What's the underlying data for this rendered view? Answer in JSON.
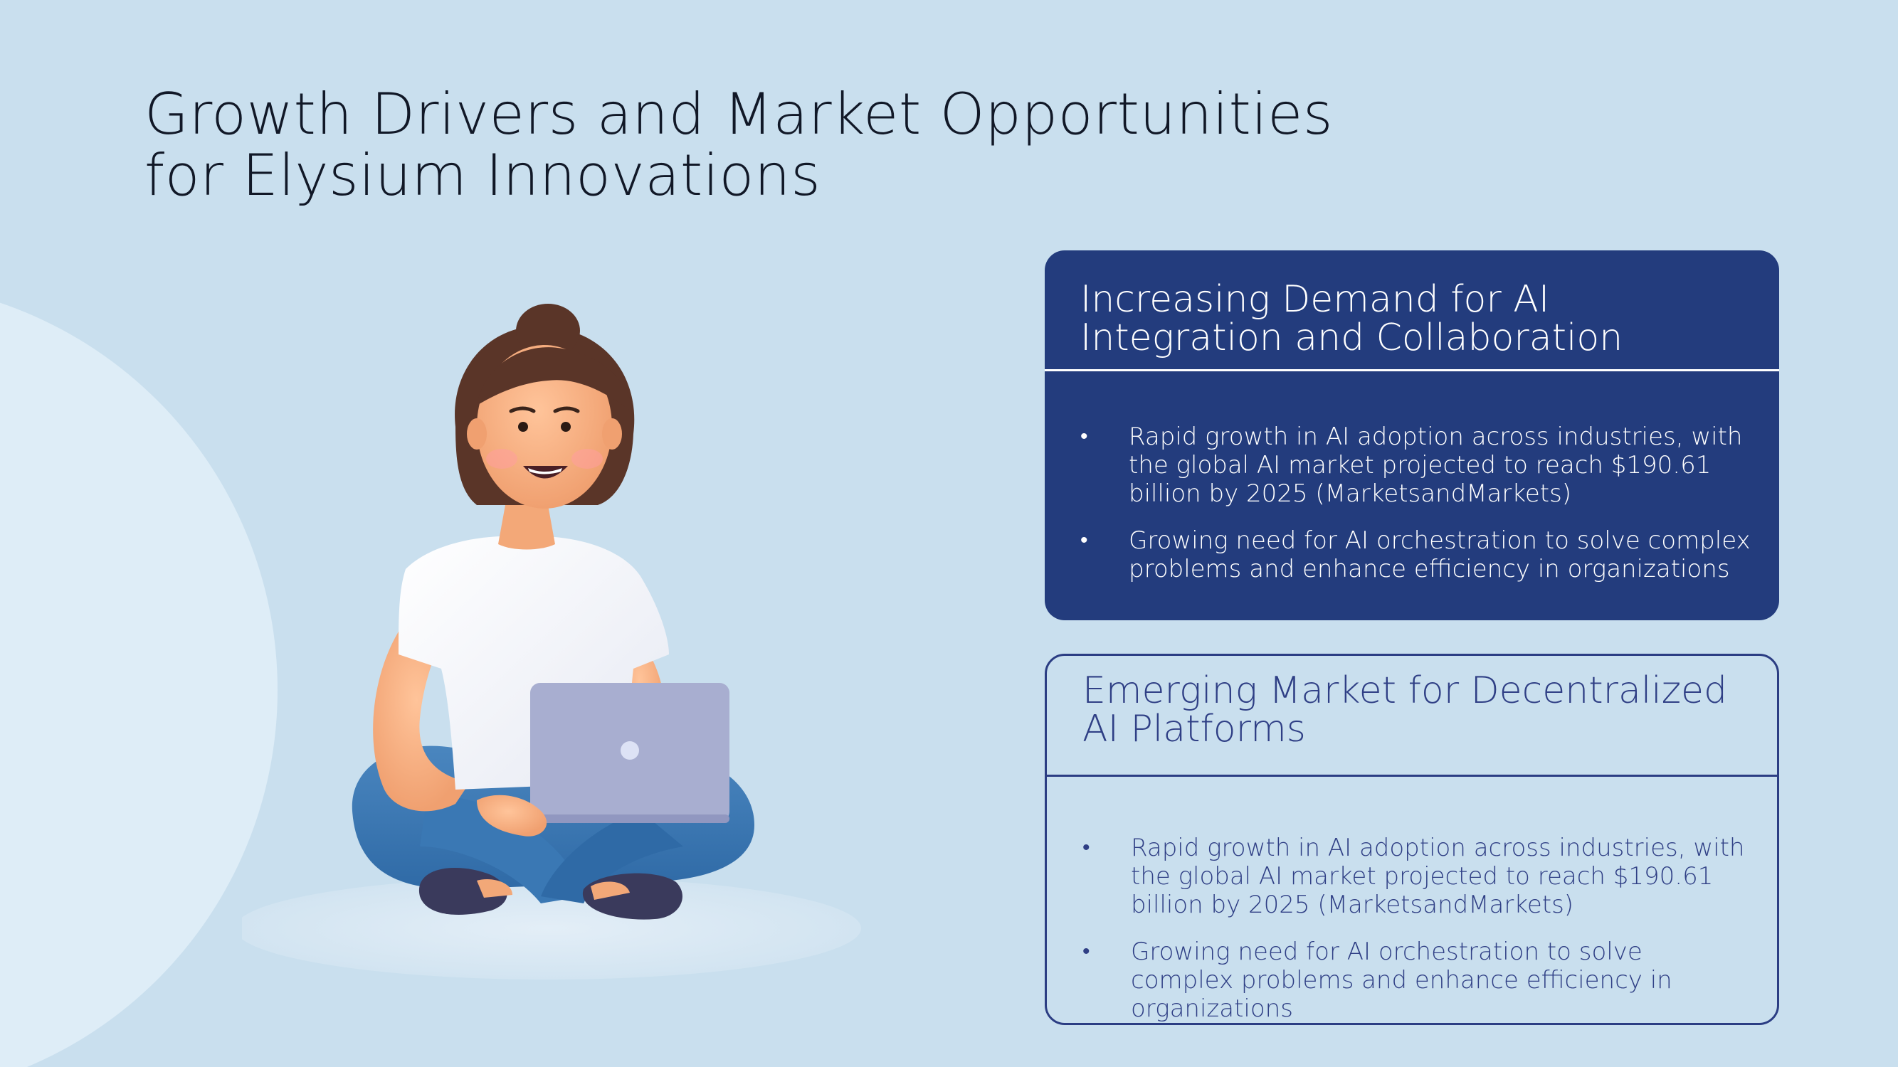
{
  "slide": {
    "title": "Growth Drivers and Market Opportunities for Elysium Innovations"
  },
  "cards": [
    {
      "heading": "Increasing Demand for AI Integration and Collaboration",
      "bullets": [
        "Rapid growth in AI adoption across industries, with the global AI market projected to reach $190.61 billion by 2025 (MarketsandMarkets)",
        "Growing need for AI orchestration to solve complex problems and enhance efficiency in organizations"
      ]
    },
    {
      "heading": "Emerging Market for Decentralized AI Platforms",
      "bullets": [
        "Rapid growth in AI adoption across industries, with the global AI market projected to reach $190.61 billion by 2025 (MarketsandMarkets)",
        "Growing need for AI orchestration to solve complex problems and enhance efficiency in organizations"
      ]
    }
  ],
  "colors": {
    "background": "#c9dfee",
    "card_primary": "#233c7d",
    "card_outline": "#2b3d83"
  },
  "icons": {
    "illustration": "woman-with-laptop-illustration"
  }
}
